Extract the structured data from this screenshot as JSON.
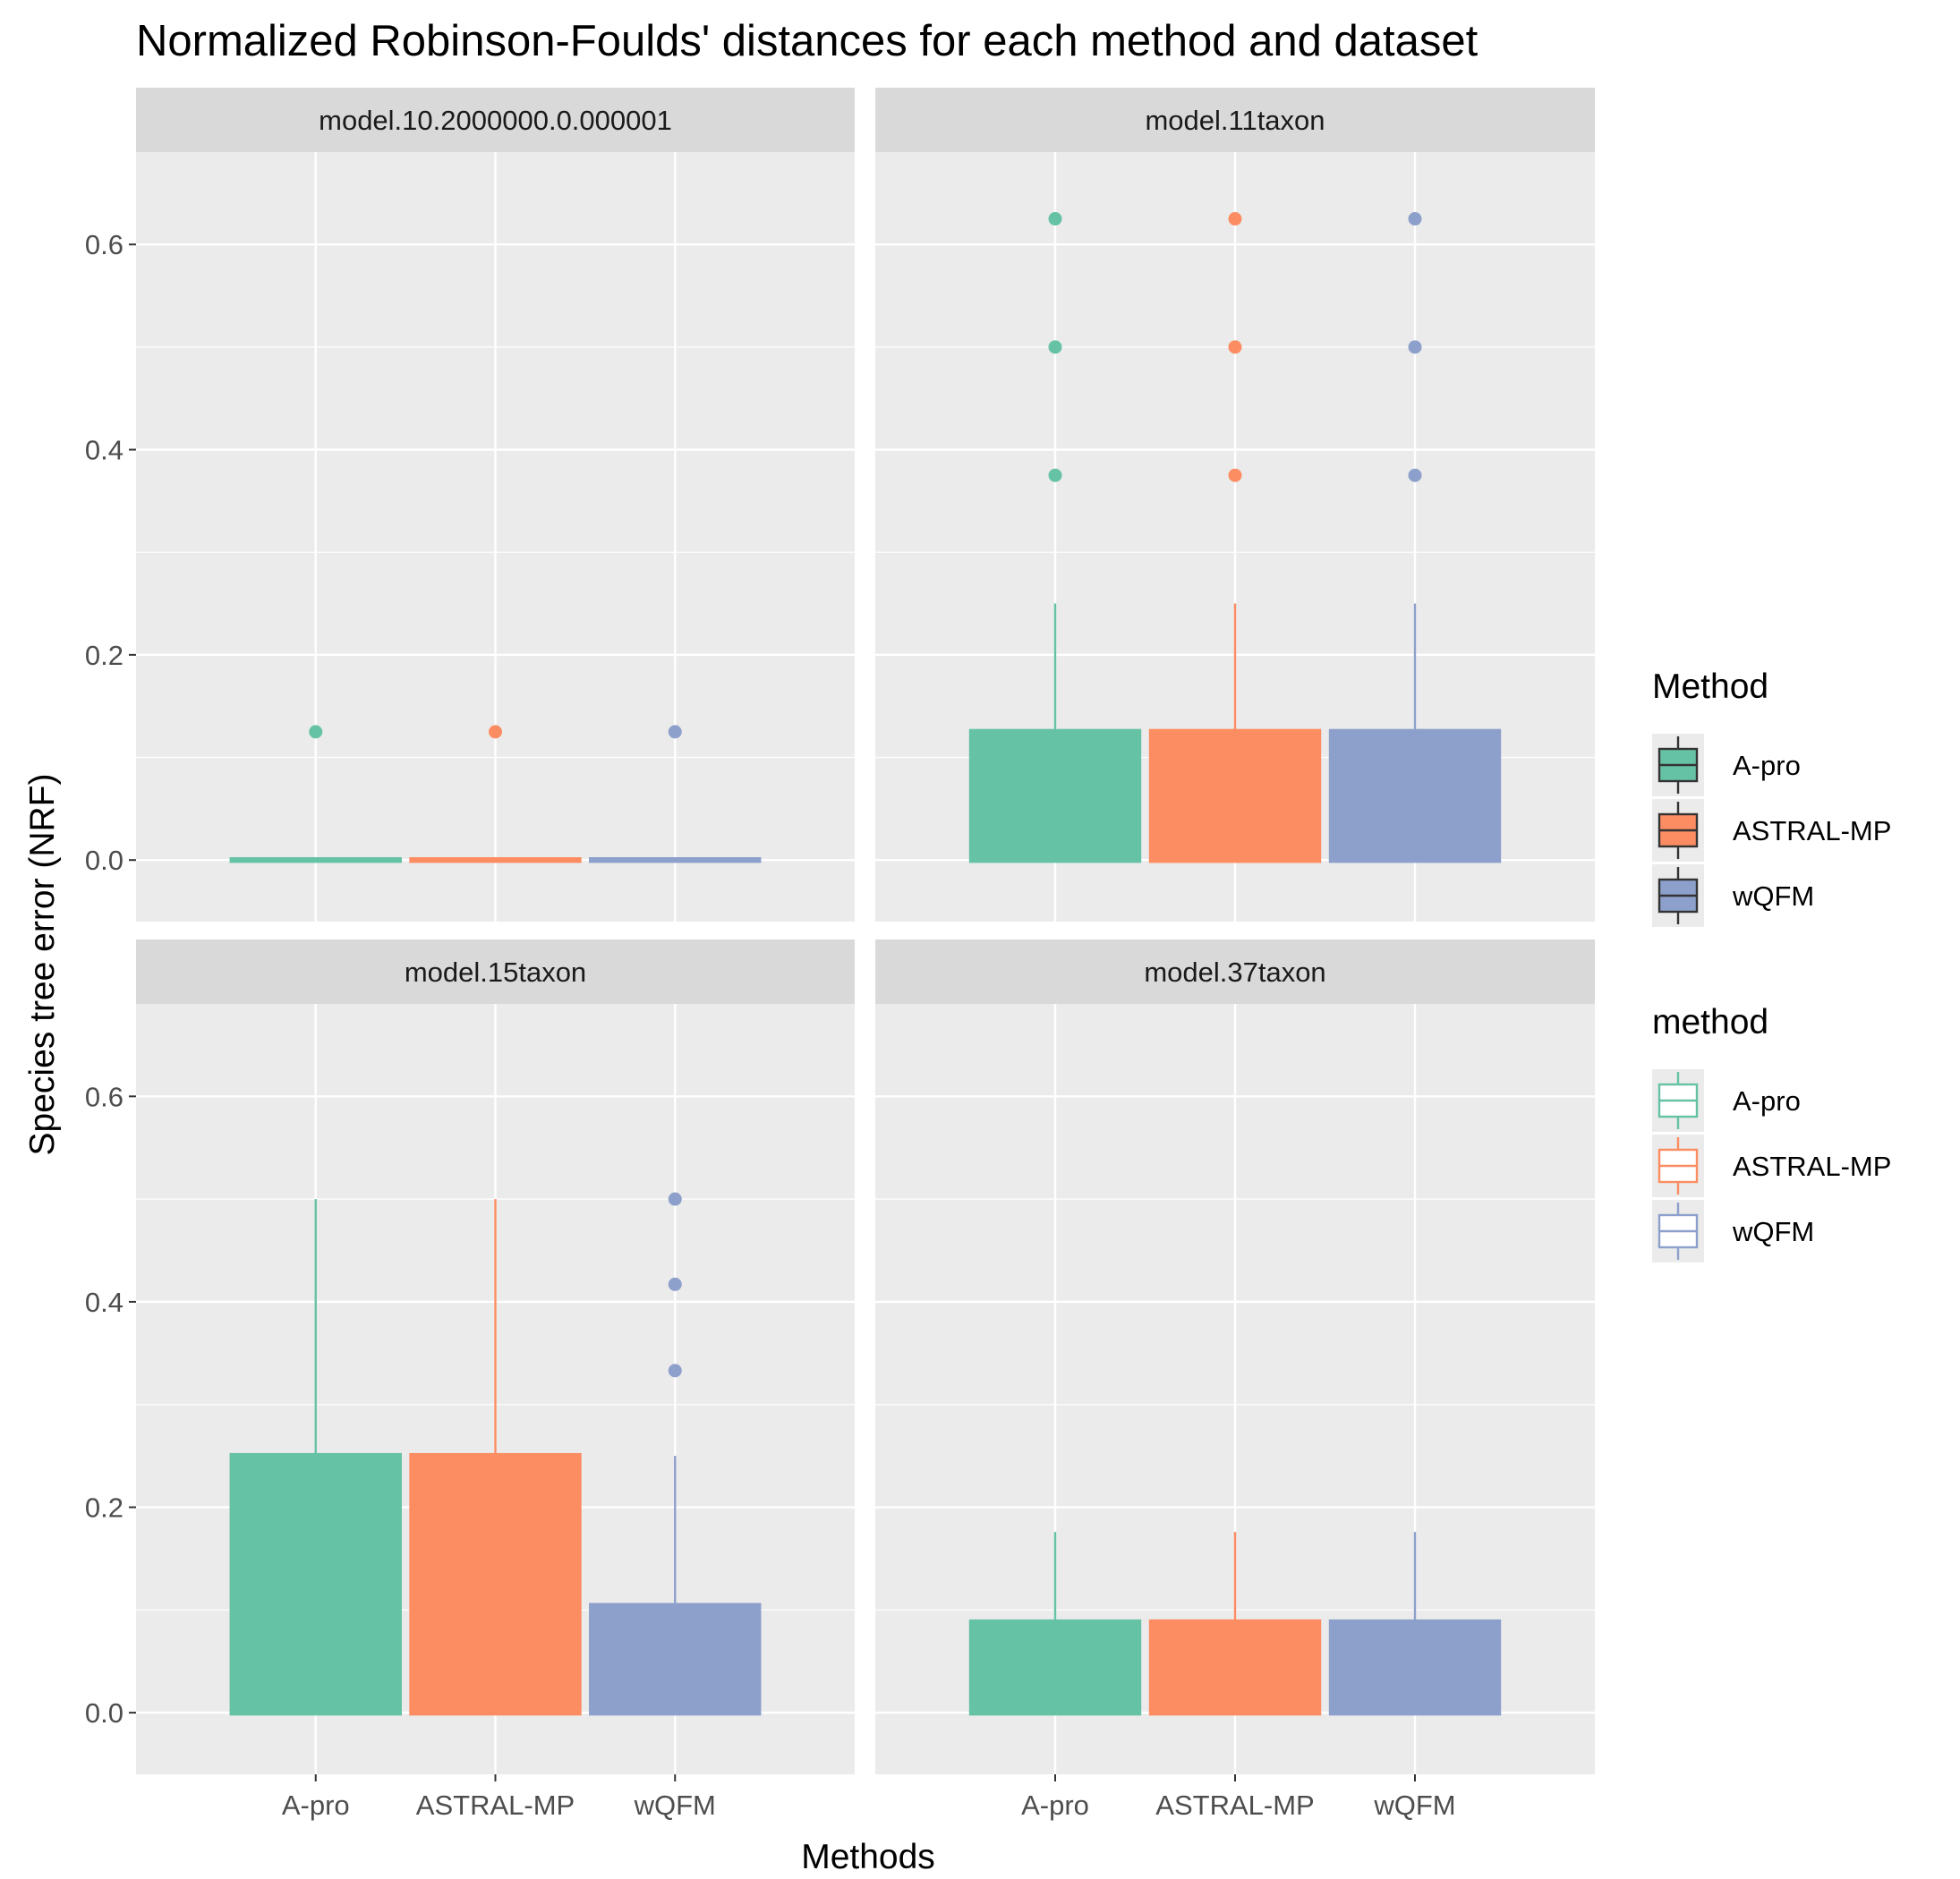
{
  "title": "Normalized Robinson-Foulds' distances for each method and dataset",
  "xlabel": "Methods",
  "ylabel": "Species tree error (NRF)",
  "colors": {
    "A-pro": "#66c2a5",
    "ASTRAL-MP": "#fc8d62",
    "wQFM": "#8da0cb",
    "panel_background": "#ebebeb",
    "strip_background": "#d9d9d9",
    "grid": "#ffffff"
  },
  "chart_data": {
    "type": "boxplot",
    "facet_layout": "2x2",
    "categories": [
      "A-pro",
      "ASTRAL-MP",
      "wQFM"
    ],
    "yticks": [
      "0.0",
      "0.2",
      "0.4",
      "0.6"
    ],
    "ylim": [
      -0.06,
      0.69
    ],
    "grid": true,
    "legend_position": "right",
    "panels": [
      {
        "name": "model.10.2000000.0.000001",
        "boxes": [
          {
            "method": "A-pro",
            "lower": 0,
            "q1": 0,
            "median": 0,
            "q3": 0,
            "upper": 0,
            "outliers": [
              0.125
            ]
          },
          {
            "method": "ASTRAL-MP",
            "lower": 0,
            "q1": 0,
            "median": 0,
            "q3": 0,
            "upper": 0,
            "outliers": [
              0.125
            ]
          },
          {
            "method": "wQFM",
            "lower": 0,
            "q1": 0,
            "median": 0,
            "q3": 0,
            "upper": 0,
            "outliers": [
              0.125
            ]
          }
        ]
      },
      {
        "name": "model.11taxon",
        "boxes": [
          {
            "method": "A-pro",
            "lower": 0,
            "q1": 0,
            "median": 0,
            "q3": 0.125,
            "upper": 0.25,
            "outliers": [
              0.375,
              0.5,
              0.625
            ]
          },
          {
            "method": "ASTRAL-MP",
            "lower": 0,
            "q1": 0,
            "median": 0,
            "q3": 0.125,
            "upper": 0.25,
            "outliers": [
              0.375,
              0.5,
              0.625
            ]
          },
          {
            "method": "wQFM",
            "lower": 0,
            "q1": 0,
            "median": 0,
            "q3": 0.125,
            "upper": 0.25,
            "outliers": [
              0.375,
              0.5,
              0.625
            ]
          }
        ]
      },
      {
        "name": "model.15taxon",
        "boxes": [
          {
            "method": "A-pro",
            "lower": 0,
            "q1": 0,
            "median": 0,
            "q3": 0.25,
            "upper": 0.5,
            "outliers": []
          },
          {
            "method": "ASTRAL-MP",
            "lower": 0,
            "q1": 0,
            "median": 0,
            "q3": 0.25,
            "upper": 0.5,
            "outliers": []
          },
          {
            "method": "wQFM",
            "lower": 0,
            "q1": 0,
            "median": 0,
            "q3": 0.104,
            "upper": 0.25,
            "outliers": [
              0.333,
              0.417,
              0.5
            ]
          }
        ]
      },
      {
        "name": "model.37taxon",
        "boxes": [
          {
            "method": "A-pro",
            "lower": 0,
            "q1": 0,
            "median": 0,
            "q3": 0.088,
            "upper": 0.176,
            "outliers": []
          },
          {
            "method": "ASTRAL-MP",
            "lower": 0,
            "q1": 0,
            "median": 0,
            "q3": 0.088,
            "upper": 0.176,
            "outliers": []
          },
          {
            "method": "wQFM",
            "lower": 0,
            "q1": 0,
            "median": 0,
            "q3": 0.088,
            "upper": 0.176,
            "outliers": []
          }
        ]
      }
    ],
    "legends": [
      {
        "title": "Method",
        "style": "filled",
        "entries": [
          "A-pro",
          "ASTRAL-MP",
          "wQFM"
        ]
      },
      {
        "title": "method",
        "style": "outline",
        "entries": [
          "A-pro",
          "ASTRAL-MP",
          "wQFM"
        ]
      }
    ]
  }
}
